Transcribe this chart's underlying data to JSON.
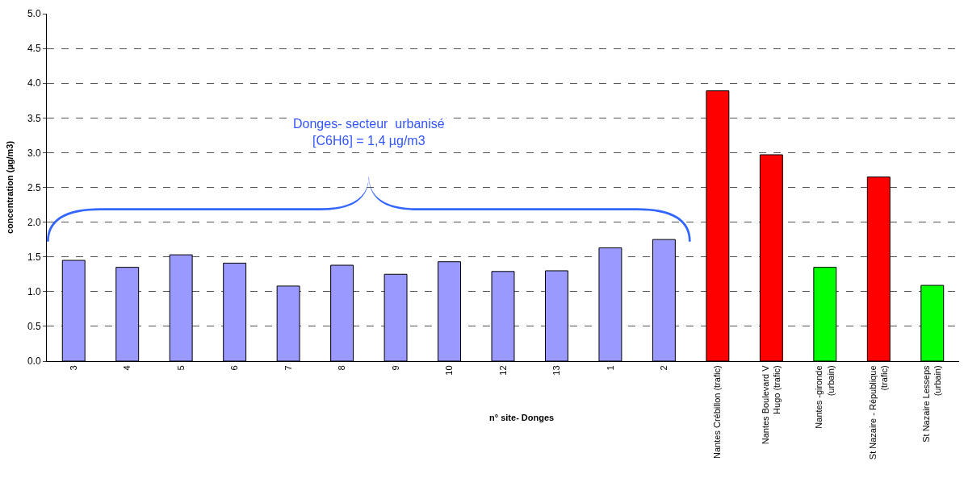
{
  "chart_data": {
    "type": "bar",
    "xlabel": "n° site- Donges",
    "ylabel": "concentration (µg/m3)",
    "categories": [
      "3",
      "4",
      "5",
      "6",
      "7",
      "8",
      "9",
      "10",
      "12",
      "13",
      "1",
      "2",
      "Nantes Crébillon (trafic)",
      "Nantes Boulevard V\nHugo (trafic)",
      "Nantes -gironde\n(urbain)",
      "St Nazaire - République\n(trafic)",
      "St Nazaire Lesseps\n(urbain)"
    ],
    "values": [
      1.45,
      1.35,
      1.53,
      1.41,
      1.08,
      1.38,
      1.25,
      1.43,
      1.29,
      1.3,
      1.63,
      1.75,
      3.89,
      2.97,
      1.35,
      2.65,
      1.09
    ],
    "colors": [
      "#9999ff",
      "#9999ff",
      "#9999ff",
      "#9999ff",
      "#9999ff",
      "#9999ff",
      "#9999ff",
      "#9999ff",
      "#9999ff",
      "#9999ff",
      "#9999ff",
      "#9999ff",
      "#ff0000",
      "#ff0000",
      "#00ff00",
      "#ff0000",
      "#00ff00"
    ],
    "annotations": [
      "Donges- secteur  urbanisé\n[C6H6] = 1,4 µg/m3"
    ],
    "ylim": [
      0,
      5
    ],
    "yticks": [
      {
        "value": 0,
        "label": "0.0"
      },
      {
        "value": 0.5,
        "label": "0.5"
      },
      {
        "value": 1,
        "label": "1.0"
      },
      {
        "value": 1.5,
        "label": "1.5"
      },
      {
        "value": 2,
        "label": "2.0"
      },
      {
        "value": 2.5,
        "label": "2.5"
      },
      {
        "value": 3,
        "label": "3.0"
      },
      {
        "value": 3.5,
        "label": "3.5"
      },
      {
        "value": 4,
        "label": "4.0"
      },
      {
        "value": 4.5,
        "label": "4.5"
      },
      {
        "value": 5,
        "label": "5.0"
      }
    ],
    "grid": "y"
  }
}
